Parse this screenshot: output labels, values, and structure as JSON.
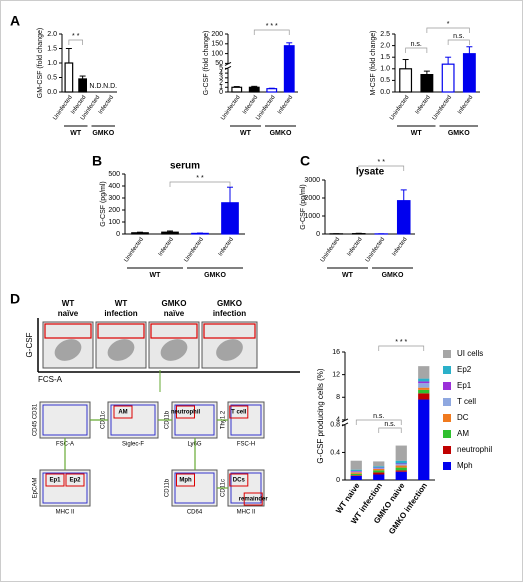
{
  "panels": [
    "A",
    "B",
    "C",
    "D"
  ],
  "chart_data": [
    {
      "type": "bar",
      "ylabel": "GM-CSF (fold change)",
      "categories": [
        "Uninfected",
        "Infected",
        "Uninfected",
        "Infected"
      ],
      "groups": [
        "WT",
        "GMKO"
      ],
      "values": [
        1.0,
        0.45,
        null,
        null
      ],
      "errors": [
        0.5,
        0.1,
        null,
        null
      ],
      "value_labels": [
        null,
        null,
        "N.D.",
        "N.D."
      ],
      "colors": [
        "#000000",
        "#000000",
        "#0000ee",
        "#0000ee"
      ],
      "filled": [
        false,
        true,
        false,
        true
      ],
      "ylim": [
        0,
        2
      ],
      "yticks": [
        {
          "value": 0,
          "label": "0.0"
        },
        {
          "value": 0.5,
          "label": "0.5"
        },
        {
          "value": 1,
          "label": "1.0"
        },
        {
          "value": 1.5,
          "label": "1.5"
        },
        {
          "value": 2,
          "label": "2.0"
        }
      ],
      "annotations": [
        "* *"
      ]
    },
    {
      "type": "bar",
      "ylabel": "G-CSF (fold change)",
      "categories": [
        "Uninfected",
        "Infected",
        "Uninfected",
        "Infected"
      ],
      "groups": [
        "WT",
        "GMKO"
      ],
      "values": [
        1,
        1,
        0.7,
        140
      ],
      "errors": [
        0.15,
        0.2,
        0.1,
        15
      ],
      "colors": [
        "#000000",
        "#000000",
        "#0000ee",
        "#0000ee"
      ],
      "filled": [
        false,
        true,
        false,
        true
      ],
      "ylim": [
        0,
        200
      ],
      "ybreak": [
        5,
        50
      ],
      "yticks": [
        0,
        1,
        2,
        3,
        4,
        5,
        50,
        100,
        150,
        200
      ],
      "annotations": [
        "* * *"
      ]
    },
    {
      "type": "bar",
      "ylabel": "M-CSF (fold change)",
      "categories": [
        "Uninfected",
        "Infected",
        "Uninfected",
        "Infected"
      ],
      "groups": [
        "WT",
        "GMKO"
      ],
      "values": [
        1.0,
        0.75,
        1.2,
        1.65
      ],
      "errors": [
        0.4,
        0.15,
        0.3,
        0.3
      ],
      "colors": [
        "#000000",
        "#000000",
        "#0000ee",
        "#0000ee"
      ],
      "filled": [
        false,
        true,
        false,
        true
      ],
      "ylim": [
        0,
        2.5
      ],
      "yticks": [
        {
          "value": 0,
          "label": "0.0"
        },
        {
          "value": 0.5,
          "label": "0.5"
        },
        {
          "value": 1,
          "label": "1.0"
        },
        {
          "value": 1.5,
          "label": "1.5"
        },
        {
          "value": 2,
          "label": "2.0"
        },
        {
          "value": 2.5,
          "label": "2.5"
        }
      ],
      "annotations": [
        "n.s.",
        "*",
        "n.s."
      ]
    },
    {
      "type": "bar",
      "title": "serum",
      "ylabel": "G-CSF (pg/ml)",
      "categories": [
        "Uninfected",
        "Infected",
        "Uninfected",
        "Infected"
      ],
      "groups": [
        "WT",
        "GMKO"
      ],
      "values": [
        10,
        15,
        5,
        260
      ],
      "errors": [
        5,
        10,
        3,
        130
      ],
      "colors": [
        "#000000",
        "#000000",
        "#0000ee",
        "#0000ee"
      ],
      "filled": [
        false,
        true,
        false,
        true
      ],
      "ylim": [
        0,
        500
      ],
      "yticks": [
        0,
        100,
        200,
        300,
        400,
        500
      ],
      "annotations": [
        "* *"
      ]
    },
    {
      "type": "bar",
      "title": "lysate",
      "ylabel": "G-CSF (pg/ml)",
      "categories": [
        "Uninfected",
        "Infected",
        "Uninfected",
        "Infected"
      ],
      "groups": [
        "WT",
        "GMKO"
      ],
      "values": [
        10,
        20,
        5,
        1850
      ],
      "errors": [
        5,
        20,
        5,
        600
      ],
      "colors": [
        "#000000",
        "#000000",
        "#0000ee",
        "#0000ee"
      ],
      "filled": [
        false,
        true,
        false,
        true
      ],
      "ylim": [
        0,
        3000
      ],
      "yticks": [
        0,
        1000,
        2000,
        3000
      ],
      "annotations": [
        "* *"
      ]
    },
    {
      "type": "stacked",
      "ylabel": "G-CSF producing cells (%)",
      "categories": [
        "WT naive",
        "WT infection",
        "GMKO naive",
        "GMKO infection"
      ],
      "ylim": [
        0,
        16
      ],
      "ybreak": [
        0.8,
        4
      ],
      "yticks": [
        0,
        0.4,
        0.8,
        4,
        8,
        12,
        16
      ],
      "annotations": [
        "n.s.",
        "n.s.",
        "* * *"
      ],
      "series": [
        {
          "name": "UI cells",
          "color": "#a6a6a6",
          "values": [
            0.13,
            0.07,
            0.22,
            2.2
          ]
        },
        {
          "name": "Ep2",
          "color": "#2ab0c9",
          "values": [
            0.02,
            0.02,
            0.04,
            0.5
          ]
        },
        {
          "name": "Ep1",
          "color": "#9b30d9",
          "values": [
            0.01,
            0.01,
            0.01,
            0.3
          ]
        },
        {
          "name": "T cell",
          "color": "#8fa8e0",
          "values": [
            0.01,
            0.01,
            0.02,
            0.8
          ]
        },
        {
          "name": "DC",
          "color": "#f07a1f",
          "values": [
            0.02,
            0.02,
            0.03,
            0.4
          ]
        },
        {
          "name": "AM",
          "color": "#2fc02f",
          "values": [
            0.02,
            0.03,
            0.04,
            0.6
          ]
        },
        {
          "name": "neutrophil",
          "color": "#c00000",
          "values": [
            0.01,
            0.03,
            0.02,
            1.1
          ]
        },
        {
          "name": "Mph",
          "color": "#0000ee",
          "values": [
            0.06,
            0.08,
            0.12,
            7.6
          ]
        }
      ]
    }
  ],
  "flow": {
    "columns": [
      [
        "WT",
        "naïve"
      ],
      [
        "WT",
        "infection"
      ],
      [
        "GMKO",
        "naïve"
      ],
      [
        "GMKO",
        "infection"
      ]
    ],
    "y_axis": "G-CSF",
    "x_axis": "FCS-A",
    "gates": [
      {
        "y_axis": "CD45 CD31",
        "x_axis": "FSC-A",
        "labels": []
      },
      {
        "y_axis": "CD11c",
        "x_axis": "Siglec-F",
        "labels": [
          "AM"
        ]
      },
      {
        "y_axis": "CD11b",
        "x_axis": "Ly6G",
        "labels": [
          "neutrophil"
        ]
      },
      {
        "y_axis": "Thy1.2",
        "x_axis": "FSC-H",
        "labels": [
          "T cell"
        ]
      },
      {
        "y_axis": "EpCAM",
        "x_axis": "MHC II",
        "labels": [
          "Ep1",
          "Ep2"
        ]
      },
      {
        "y_axis": "CD11b",
        "x_axis": "CD64",
        "labels": [
          "Mph"
        ]
      },
      {
        "y_axis": "CD11c",
        "x_axis": "MHC II",
        "labels": [
          "DCs",
          "remainder"
        ]
      }
    ]
  }
}
